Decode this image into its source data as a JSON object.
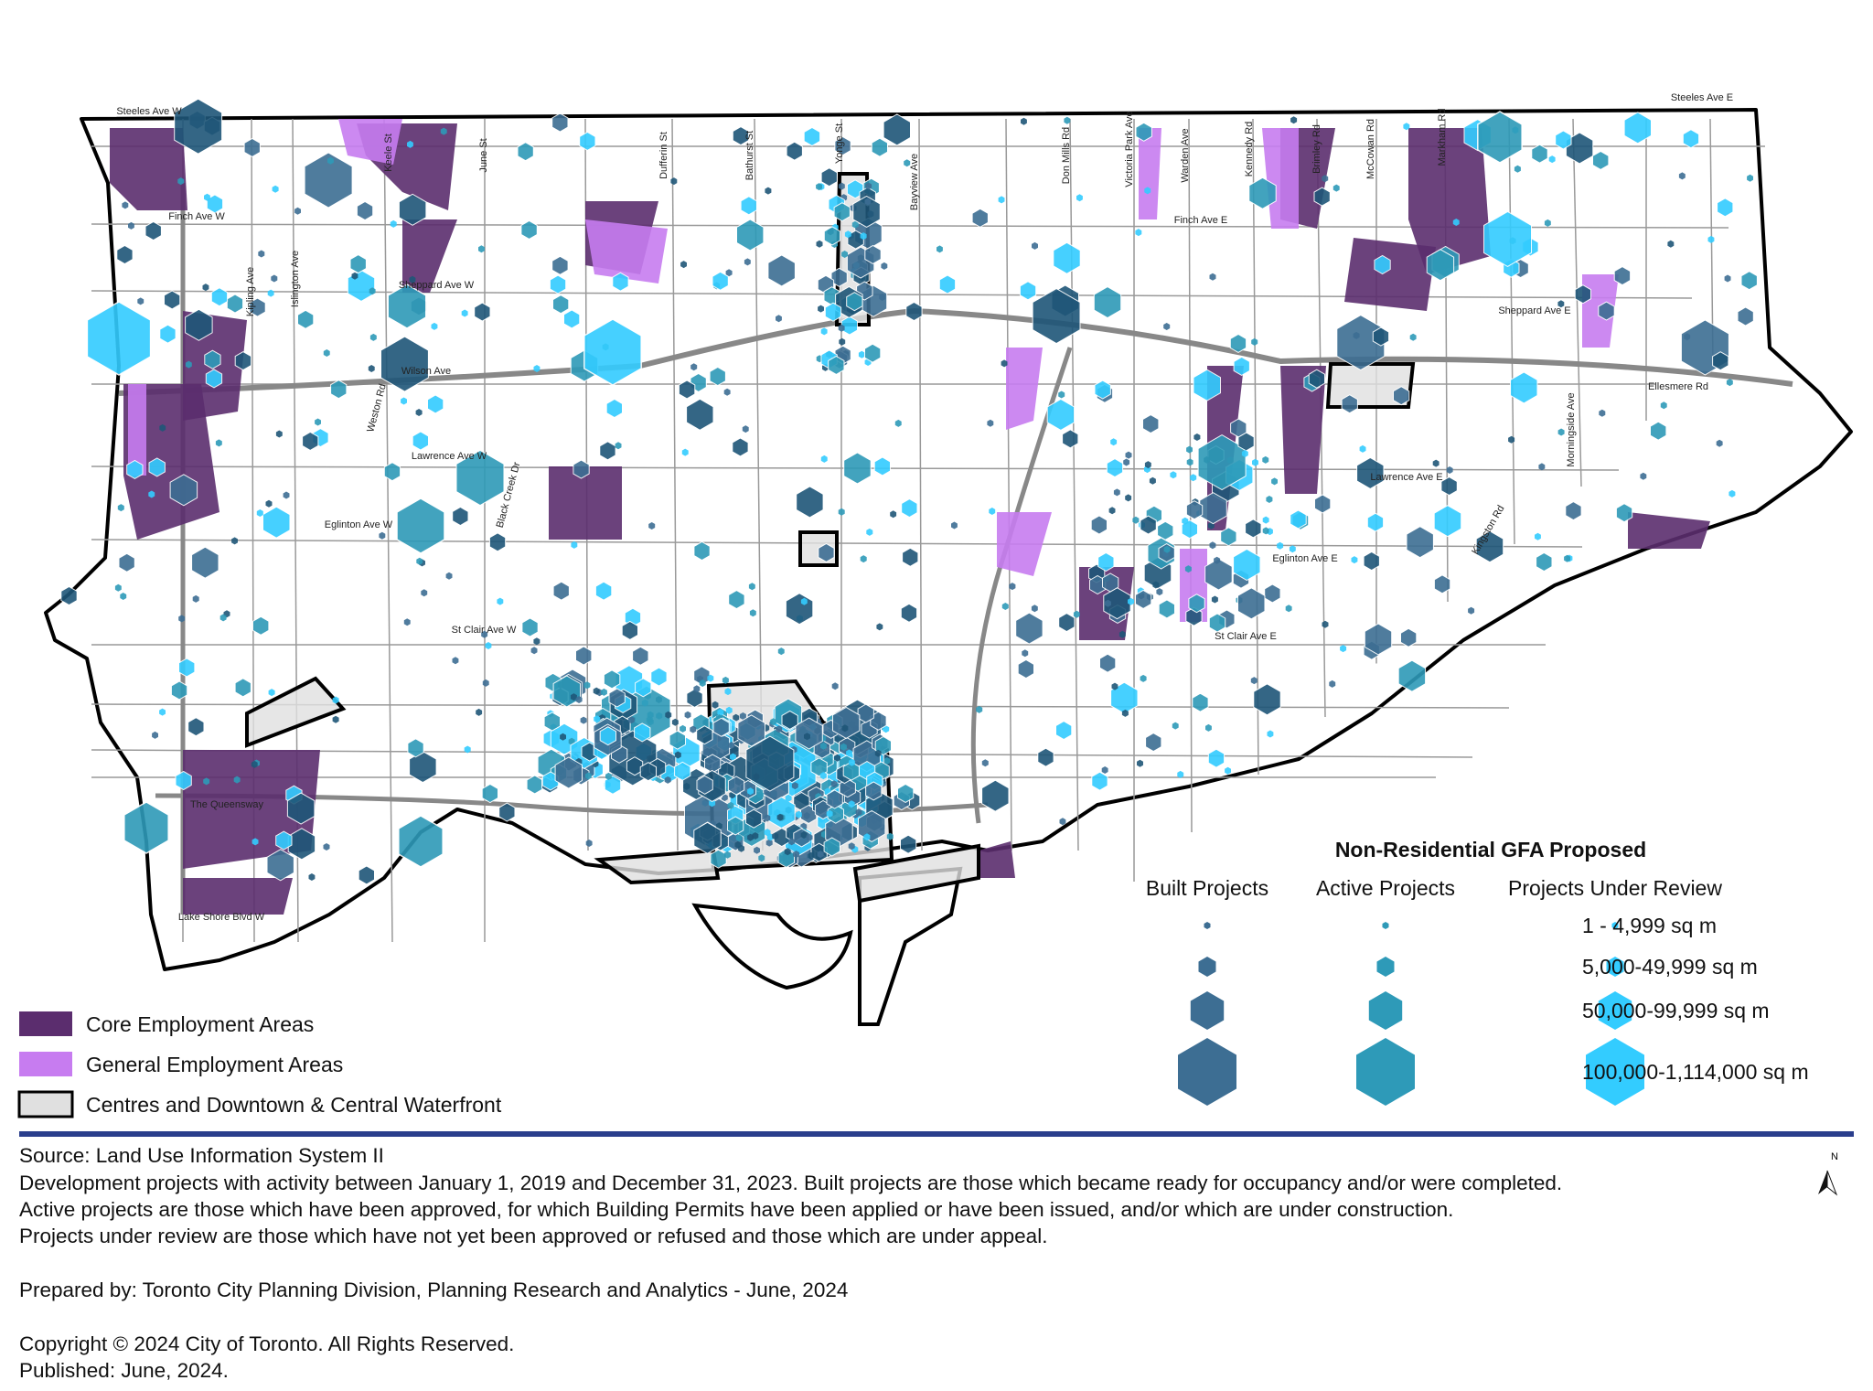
{
  "map": {
    "streets": [
      "Steeles Ave W",
      "Steeles Ave E",
      "Finch Ave W",
      "Finch Ave E",
      "Sheppard Ave W",
      "Sheppard Ave E",
      "Wilson Ave",
      "Lawrence Ave W",
      "Lawrence Ave E",
      "Eglinton Ave W",
      "Eglinton Ave E",
      "St Clair Ave W",
      "St Clair Ave E",
      "Ellesmere Rd",
      "The Queensway",
      "Lake Shore Blvd W",
      "Kipling Ave",
      "Islington Ave",
      "Weston Rd",
      "Black Creek Dr",
      "Keele St",
      "June St",
      "Dufferin St",
      "Bathurst St",
      "Yonge St",
      "Bayview Ave",
      "Don Mills Rd",
      "Victoria Park Ave",
      "Warden Ave",
      "Kennedy Rd",
      "Brimley Rd",
      "McCowan Rd",
      "Markham Rd",
      "Morningside Ave",
      "Kingston Rd"
    ]
  },
  "legend": {
    "title": "Non-Residential GFA Proposed",
    "columns": [
      "Built Projects",
      "Active Projects",
      "Projects Under Review"
    ],
    "sizes": [
      "1 - 4,999 sq m",
      "5,000-49,999 sq m",
      "50,000-99,999 sq m",
      "100,000-1,114,000 sq m"
    ],
    "areas": [
      "Core Employment Areas",
      "General Employment Areas",
      "Centres and Downtown & Central Waterfront"
    ]
  },
  "footer": {
    "lines": [
      "Source: Land Use Information System II",
      "Development projects with activity between January 1, 2019 and December 31, 2023. Built projects are those which became ready for occupancy and/or were completed.",
      "Active projects are those which have been approved, for which Building Permits have been applied or have been issued, and/or which are under construction.",
      "Projects under review are those which have not yet been approved or refused and those which are under appeal.",
      "Prepared by: Toronto City Planning Division, Planning Research and Analytics - June, 2024",
      "Copyright © 2024 City of Toronto. All Rights Reserved.",
      "Published: June, 2024."
    ],
    "north": "N"
  }
}
